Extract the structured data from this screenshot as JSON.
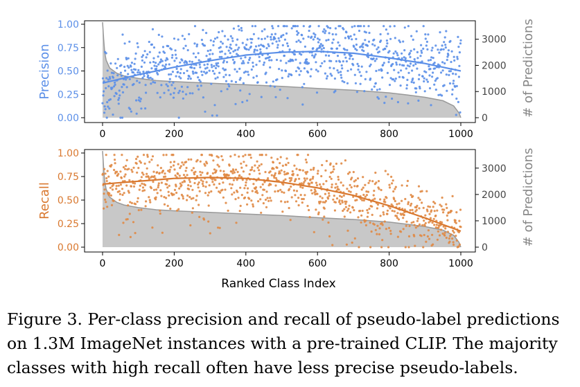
{
  "chart_data": [
    {
      "type": "scatter",
      "ylabel": "Precision",
      "y2label": "# of Predictions",
      "xlim": [
        0,
        1000
      ],
      "ylim": [
        0,
        1
      ],
      "y2lim": [
        0,
        3600
      ],
      "x_ticks": [
        "0",
        "200",
        "400",
        "600",
        "800",
        "1000"
      ],
      "y_ticks": [
        "0.00",
        "0.25",
        "0.50",
        "0.75",
        "1.00"
      ],
      "y2_ticks": [
        "0",
        "1000",
        "2000",
        "3000"
      ],
      "colors": {
        "points": "#5b8fe8",
        "trend": "#5b8fe8",
        "area": "#c8c8c8",
        "area_edge": "#999999",
        "label": "#5b8fe8",
        "label2": "#888888"
      },
      "trend": {
        "x": [
          0,
          100,
          200,
          300,
          400,
          500,
          600,
          700,
          800,
          900,
          1000
        ],
        "y": [
          0.37,
          0.46,
          0.54,
          0.61,
          0.67,
          0.7,
          0.71,
          0.69,
          0.64,
          0.58,
          0.5
        ]
      },
      "predictions": {
        "x": [
          0,
          3,
          6,
          10,
          20,
          40,
          60,
          100,
          150,
          200,
          300,
          400,
          500,
          600,
          700,
          800,
          850,
          900,
          950,
          980,
          995,
          1000
        ],
        "y": [
          3650,
          3000,
          2500,
          2200,
          1900,
          1700,
          1600,
          1500,
          1420,
          1380,
          1320,
          1260,
          1200,
          1120,
          1050,
          950,
          870,
          780,
          650,
          450,
          180,
          0
        ]
      },
      "scatter_summary": {
        "count": 1000,
        "spread": 0.17,
        "seed": 11
      }
    },
    {
      "type": "scatter",
      "ylabel": "Recall",
      "y2label": "# of Predictions",
      "xlabel": "Ranked Class Index",
      "xlim": [
        0,
        1000
      ],
      "ylim": [
        0,
        1
      ],
      "y2lim": [
        0,
        3600
      ],
      "x_ticks": [
        "0",
        "200",
        "400",
        "600",
        "800",
        "1000"
      ],
      "y_ticks": [
        "0.00",
        "0.25",
        "0.50",
        "0.75",
        "1.00"
      ],
      "y2_ticks": [
        "0",
        "1000",
        "2000",
        "3000"
      ],
      "colors": {
        "points": "#e08a45",
        "trend": "#d9782f",
        "area": "#c8c8c8",
        "area_edge": "#999999",
        "label": "#d9782f",
        "label2": "#888888"
      },
      "trend": {
        "x": [
          0,
          100,
          200,
          300,
          400,
          500,
          600,
          700,
          800,
          900,
          1000
        ],
        "y": [
          0.67,
          0.7,
          0.73,
          0.74,
          0.73,
          0.69,
          0.63,
          0.55,
          0.44,
          0.31,
          0.17
        ]
      },
      "predictions": {
        "x": [
          0,
          3,
          6,
          10,
          20,
          40,
          60,
          100,
          150,
          200,
          300,
          400,
          500,
          600,
          700,
          800,
          850,
          900,
          950,
          980,
          995,
          1000
        ],
        "y": [
          3650,
          3000,
          2500,
          2200,
          1900,
          1700,
          1600,
          1500,
          1420,
          1380,
          1320,
          1260,
          1200,
          1120,
          1050,
          950,
          870,
          780,
          650,
          450,
          180,
          0
        ]
      },
      "scatter_summary": {
        "count": 1000,
        "spread": 0.15,
        "seed": 29
      }
    }
  ],
  "caption": "Figure 3. Per-class precision and recall of pseudo-label predictions on 1.3M ImageNet instances with a pre-trained CLIP. The majority classes with high recall often have less precise pseudo-labels."
}
